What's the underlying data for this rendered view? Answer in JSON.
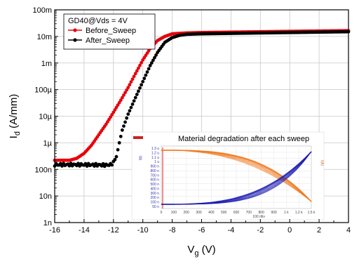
{
  "chart_data": {
    "type": "scatter",
    "xlabel": "V",
    "xlabel_sub": "g",
    "xlabel_unit": " (V)",
    "ylabel": "I",
    "ylabel_sub": "d",
    "ylabel_unit": " (A/mm)",
    "xlim": [
      -16,
      4
    ],
    "ylim": [
      1e-09,
      0.1
    ],
    "yscale": "log",
    "grid": true,
    "x_ticks": [
      -16,
      -14,
      -12,
      -10,
      -8,
      -6,
      -4,
      -2,
      0,
      2,
      4
    ],
    "x_tick_labels": [
      "-16",
      "-14",
      "-12",
      "-10",
      "-8",
      "-6",
      "-4",
      "-2",
      "0",
      "2",
      "4"
    ],
    "y_ticks": [
      1e-09,
      1e-08,
      1e-07,
      1e-06,
      1e-05,
      0.0001,
      0.001,
      0.01,
      0.1
    ],
    "y_tick_labels": [
      "1n",
      "10n",
      "100n",
      "1µ",
      "10µ",
      "100µ",
      "1m",
      "10m",
      "100m"
    ],
    "legend": {
      "title": "GD40@Vds = 4V",
      "placement": "top-left"
    },
    "series": [
      {
        "name": "Before_Sweep",
        "color": "#e8000b",
        "points": [
          [
            -16,
            2.2e-07
          ],
          [
            -15,
            2.2e-07
          ],
          [
            -14.5,
            2.6e-07
          ],
          [
            -14,
            4e-07
          ],
          [
            -13.5,
            8e-07
          ],
          [
            -13,
            2e-06
          ],
          [
            -12.5,
            5e-06
          ],
          [
            -12,
            1.4e-05
          ],
          [
            -11.5,
            4e-05
          ],
          [
            -11,
            0.00012
          ],
          [
            -10.5,
            0.0004
          ],
          [
            -10,
            0.0013
          ],
          [
            -9.5,
            0.0035
          ],
          [
            -9,
            0.007
          ],
          [
            -8.5,
            0.01
          ],
          [
            -8,
            0.0125
          ],
          [
            -7,
            0.0135
          ],
          [
            -6,
            0.014
          ],
          [
            -4,
            0.0145
          ],
          [
            -2,
            0.015
          ],
          [
            0,
            0.0155
          ],
          [
            2,
            0.016
          ],
          [
            4,
            0.0165
          ]
        ]
      },
      {
        "name": "After_Sweep",
        "color": "#000000",
        "points": [
          [
            -16,
            1.5e-07
          ],
          [
            -14,
            1.5e-07
          ],
          [
            -12.5,
            1.45e-07
          ],
          [
            -12.2,
            1.5e-07
          ],
          [
            -12,
            1.8e-07
          ],
          [
            -11.8,
            3e-07
          ],
          [
            -11.6,
            1e-06
          ],
          [
            -11.4,
            3e-06
          ],
          [
            -11,
            1.2e-05
          ],
          [
            -10.5,
            5e-05
          ],
          [
            -10,
            0.0002
          ],
          [
            -9.5,
            0.0008
          ],
          [
            -9,
            0.0025
          ],
          [
            -8.5,
            0.006
          ],
          [
            -8,
            0.009
          ],
          [
            -7.5,
            0.011
          ],
          [
            -7,
            0.012
          ],
          [
            -6,
            0.0125
          ],
          [
            -4,
            0.013
          ],
          [
            -2,
            0.0135
          ],
          [
            0,
            0.014
          ],
          [
            2,
            0.0145
          ],
          [
            4,
            0.015
          ]
        ]
      }
    ],
    "inset": {
      "title": "Material degradation after each sweep",
      "left_axis_labels": [
        "1.3 u",
        "1.2 u",
        "1.1 u",
        "1 u",
        "900 n",
        "800 n",
        "700 n",
        "600 n",
        "500 n",
        "400 n",
        "300 n",
        "200 n",
        "100 n",
        "50 n"
      ],
      "bottom_axis_labels": [
        "0",
        "100",
        "200",
        "300",
        "400",
        "500",
        "600",
        "700",
        "800",
        "900",
        "1 k",
        "1.2 k",
        "1.5 k"
      ],
      "bottom_axis_sublabel": "100 /div",
      "left_unit": "I(t)",
      "right_unit": "I(A)",
      "orange_color": "#f07a20",
      "blue_color": "#1a1ab0"
    }
  }
}
